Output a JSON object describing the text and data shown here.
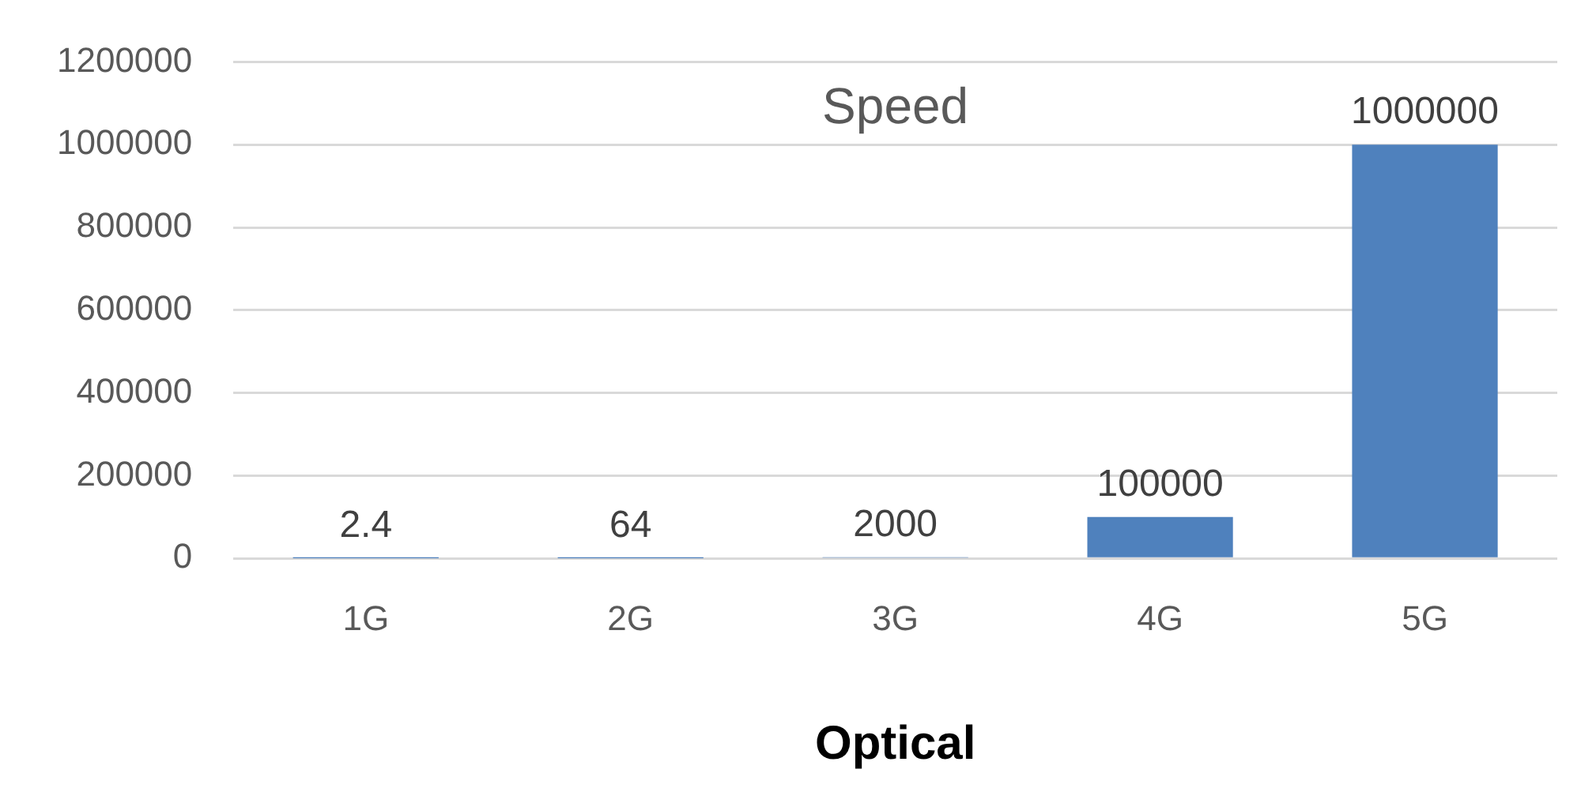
{
  "chart_data": {
    "type": "bar",
    "title": "Speed",
    "xlabel": "Optical",
    "categories": [
      "1G",
      "2G",
      "3G",
      "4G",
      "5G"
    ],
    "values": [
      2.4,
      64,
      2000,
      100000,
      1000000
    ],
    "color": "#4f81bd",
    "ylim": [
      0,
      1200000
    ],
    "yticks": [
      0,
      200000,
      400000,
      600000,
      800000,
      1000000,
      1200000
    ],
    "grid": "y",
    "legend": false,
    "data_labels": true
  }
}
